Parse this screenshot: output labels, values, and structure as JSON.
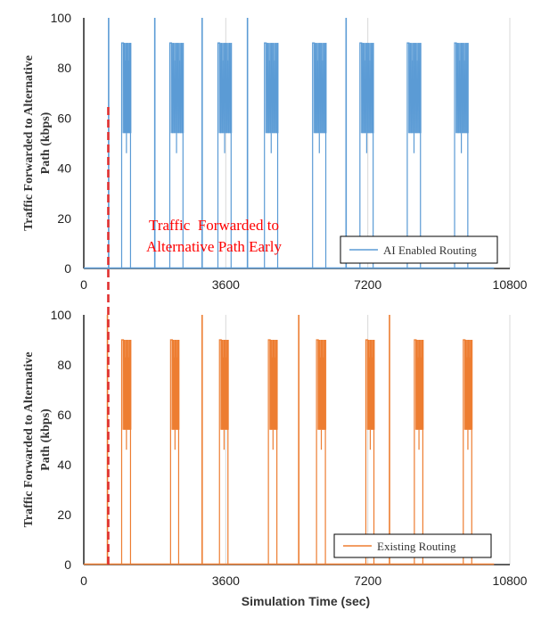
{
  "chart_data": [
    {
      "type": "line",
      "xlabel": "",
      "ylabel": "Traffic Forwarded to Alternative Path (kbps)",
      "xlim": [
        0,
        10800
      ],
      "ylim": [
        0,
        100
      ],
      "xticks": [
        "0",
        "3600",
        "7200",
        "10800"
      ],
      "yticks": [
        "0",
        "20",
        "40",
        "60",
        "80",
        "100"
      ],
      "grid": "vertical",
      "legend_position": "bottom-right",
      "series": [
        {
          "name": "AI Enabled Routing",
          "color": "#5b9bd5",
          "spikes": [
            630,
            1800,
            3000,
            4150,
            6650
          ],
          "bursts": [
            [
              960,
              1230
            ],
            [
              2180,
              2560
            ],
            [
              3400,
              3780
            ],
            [
              4580,
              4960
            ],
            [
              5800,
              6180
            ],
            [
              7000,
              7380
            ],
            [
              8200,
              8580
            ],
            [
              9400,
              9780
            ]
          ]
        }
      ],
      "annotation": {
        "x": 960,
        "text": [
          "Traffic  Forwarded to",
          "Alternative Path Early"
        ]
      }
    },
    {
      "type": "line",
      "xlabel": "Simulation Time (sec)",
      "ylabel": "Traffic Forwarded to Alternative Path (kbps)",
      "xlim": [
        0,
        10800
      ],
      "ylim": [
        0,
        100
      ],
      "xticks": [
        "0",
        "3600",
        "7200",
        "10800"
      ],
      "yticks": [
        "0",
        "20",
        "40",
        "60",
        "80",
        "100"
      ],
      "grid": "vertical",
      "legend_position": "bottom-right",
      "series": [
        {
          "name": "Existing Routing",
          "color": "#ed7d31",
          "spikes": [
            600,
            3000,
            5450,
            7750
          ],
          "bursts": [
            [
              960,
              1230
            ],
            [
              2200,
              2450
            ],
            [
              3440,
              3700
            ],
            [
              4680,
              4940
            ],
            [
              5900,
              6170
            ],
            [
              7150,
              7400
            ],
            [
              8380,
              8640
            ],
            [
              9620,
              9880
            ]
          ]
        }
      ]
    }
  ]
}
